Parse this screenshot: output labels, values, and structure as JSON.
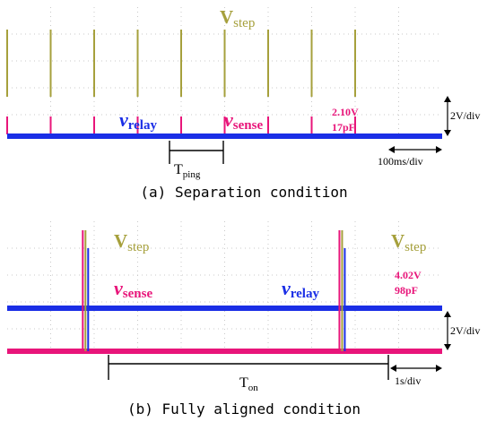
{
  "chart_data": [
    {
      "type": "line",
      "caption": "(a) Separation condition",
      "x_divisions": 10,
      "y_divisions": 5,
      "grid": true,
      "scales": {
        "time_per_div": "100ms/div",
        "volts_per_div": "2V/div"
      },
      "series": [
        {
          "name": "V",
          "subscript": "step",
          "color": "#a6a03c",
          "pulse_times_div": [
            0,
            1,
            2,
            3,
            4,
            5,
            6,
            7,
            8
          ]
        },
        {
          "name": "v",
          "subscript": "sense",
          "color": "#e8157a"
        },
        {
          "name": "v",
          "subscript": "relay",
          "color": "#1a2ee6"
        }
      ],
      "annotations": {
        "readout": [
          "2.10V",
          "17pF"
        ],
        "interval": {
          "name": "T",
          "subscript": "ping",
          "from_div": 3,
          "to_div": 4
        }
      }
    },
    {
      "type": "line",
      "caption": "(b) Fully aligned condition",
      "x_divisions": 10,
      "y_divisions": 5,
      "grid": true,
      "scales": {
        "time_per_div": "1s/div",
        "volts_per_div": "2V/div"
      },
      "series": [
        {
          "name": "V",
          "subscript": "step",
          "color": "#a6a03c",
          "pulse_times_div": [
            1.8,
            7.7
          ]
        },
        {
          "name": "v",
          "subscript": "sense",
          "color": "#e8157a"
        },
        {
          "name": "v",
          "subscript": "relay",
          "color": "#1a2ee6"
        }
      ],
      "annotations": {
        "readout": [
          "4.02V",
          "98pF"
        ],
        "interval": {
          "name": "T",
          "subscript": "on",
          "from_div": 1.8,
          "to_div": 7.7
        }
      }
    }
  ]
}
